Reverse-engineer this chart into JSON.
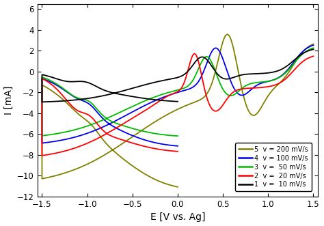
{
  "xlabel": "E [V vs. Ag]",
  "ylabel": "I [mA]",
  "xlim": [
    -1.55,
    1.55
  ],
  "ylim": [
    -12,
    6.5
  ],
  "yticks": [
    -12,
    -10,
    -8,
    -6,
    -4,
    -2,
    0,
    2,
    4,
    6
  ],
  "xticks": [
    -1.5,
    -1.0,
    -0.5,
    0.0,
    0.5,
    1.0,
    1.5
  ],
  "colors": {
    "v200": "#808000",
    "v100": "#0000EE",
    "v50": "#00BB00",
    "v20": "#FF0000",
    "v10": "#000000"
  },
  "legend_labels": [
    [
      "5",
      "v = 200 mV/s"
    ],
    [
      "4",
      "v = 100 mV/s"
    ],
    [
      "3",
      "v =  50 mV/s"
    ],
    [
      "2",
      "v =  20 mV/s"
    ],
    [
      "1",
      "v =  10 mV/s"
    ]
  ]
}
